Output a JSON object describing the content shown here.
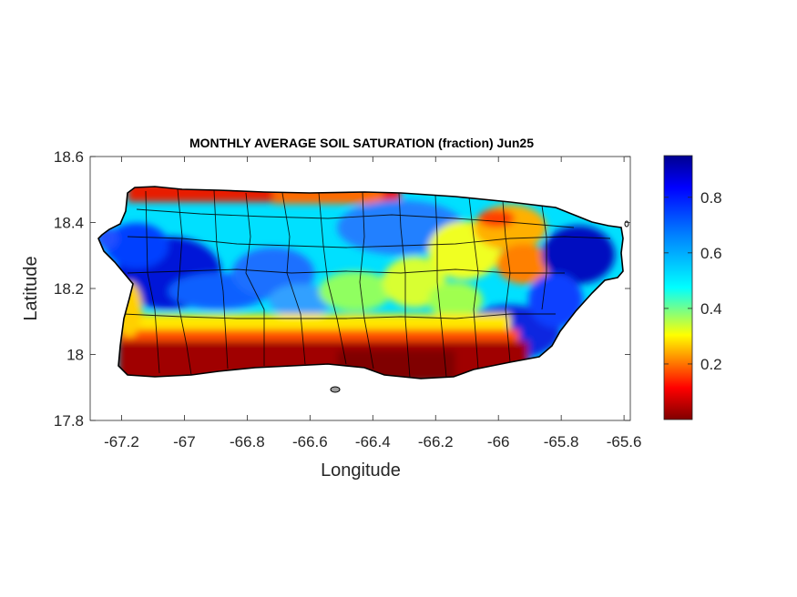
{
  "chart_data": {
    "type": "heatmap",
    "title": "MONTHLY AVERAGE SOIL SATURATION (fraction) Jun25",
    "xlabel": "Longitude",
    "ylabel": "Latitude",
    "xlim": [
      -67.3,
      -65.58
    ],
    "ylim": [
      17.8,
      18.6
    ],
    "x_ticks": [
      -67.2,
      -67,
      -66.8,
      -66.6,
      -66.4,
      -66.2,
      -66,
      -65.8,
      -65.6
    ],
    "x_tick_labels": [
      "-67.2",
      "-67",
      "-66.8",
      "-66.6",
      "-66.4",
      "-66.2",
      "-66",
      "-65.8",
      "-65.6"
    ],
    "y_ticks": [
      17.8,
      18,
      18.2,
      18.4,
      18.6
    ],
    "y_tick_labels": [
      "17.8",
      "18",
      "18.2",
      "18.4",
      "18.6"
    ],
    "colorbar": {
      "colormap": "jet-reversed",
      "range": [
        0,
        0.95
      ],
      "ticks": [
        0.2,
        0.4,
        0.6,
        0.8
      ],
      "tick_labels": [
        "0.2",
        "0.4",
        "0.6",
        "0.8"
      ],
      "low_color": "#800000",
      "high_color": "#00008f"
    },
    "grid": false,
    "legend": "none"
  }
}
